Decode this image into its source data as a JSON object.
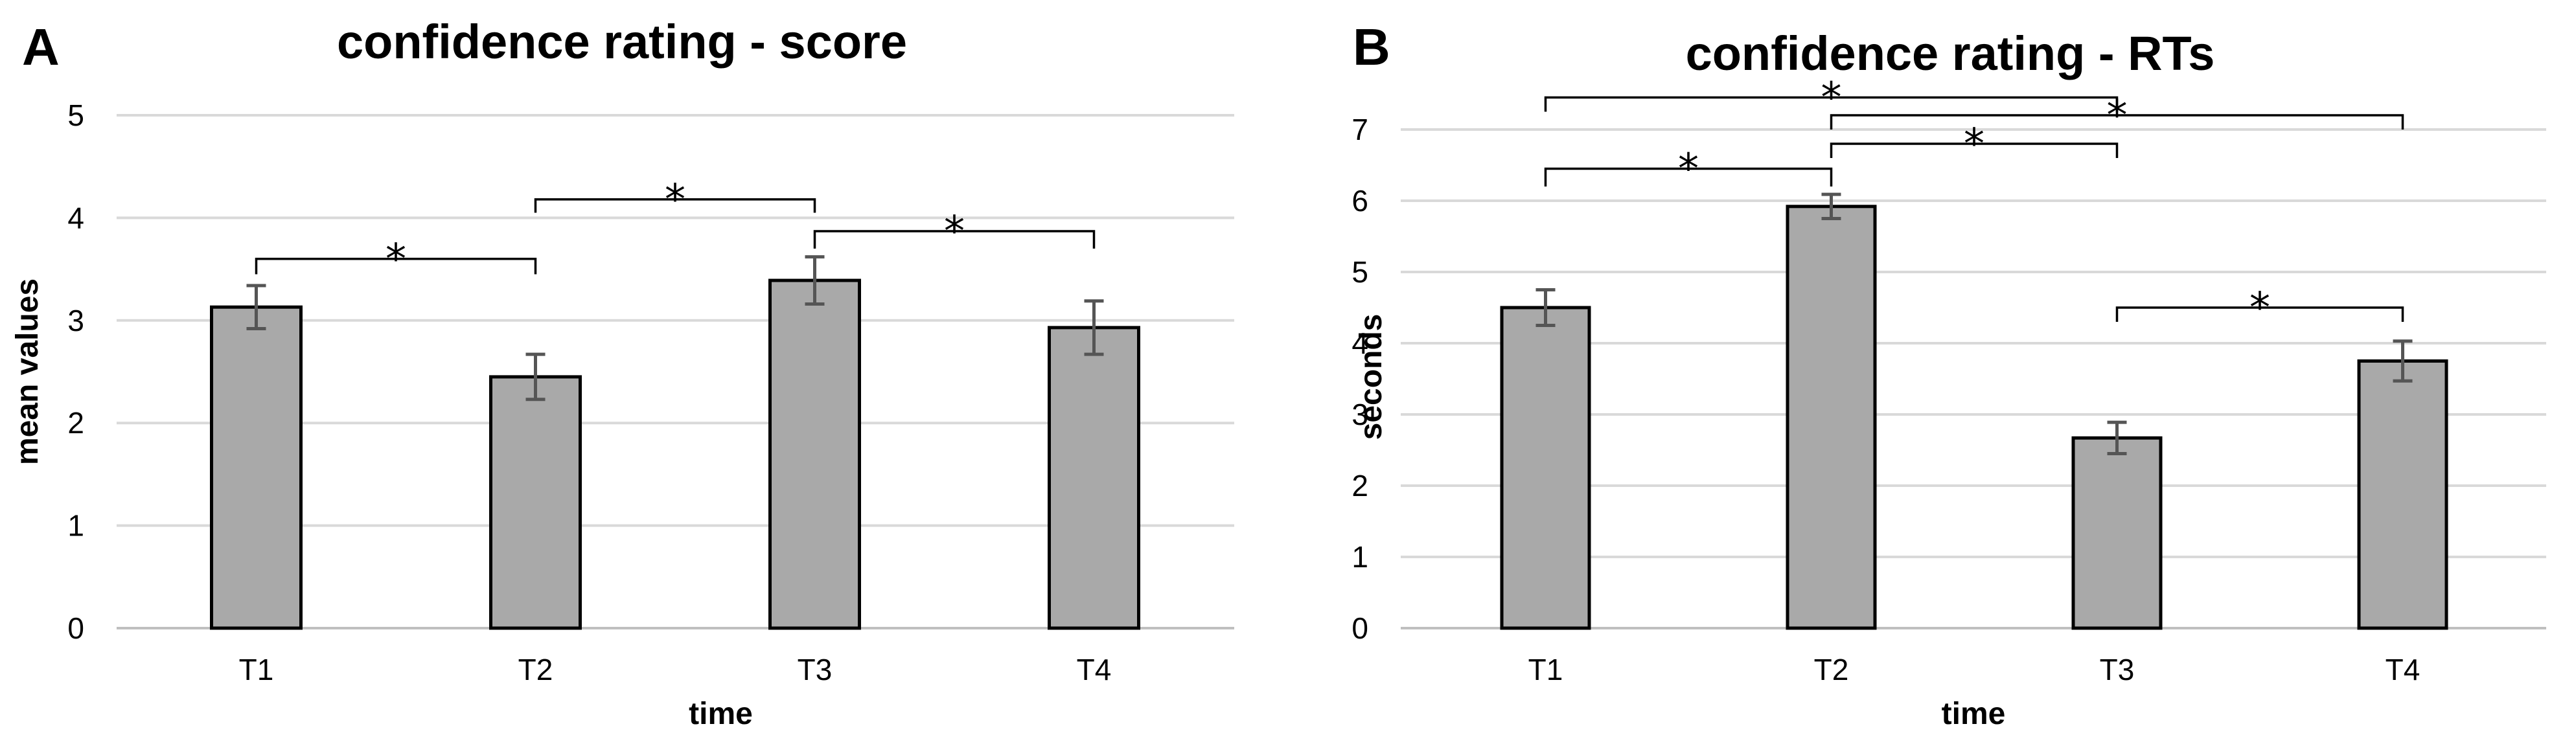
{
  "chart_data": [
    {
      "type": "bar",
      "panel_label": "A",
      "title": "confidence rating - score",
      "xlabel": "time",
      "ylabel": "mean values",
      "categories": [
        "T1",
        "T2",
        "T3",
        "T4"
      ],
      "values": [
        3.13,
        2.45,
        3.39,
        2.93
      ],
      "errors": [
        0.21,
        0.22,
        0.23,
        0.26
      ],
      "ylim": [
        0,
        5
      ],
      "yticks": [
        "0",
        "1",
        "2",
        "3",
        "4",
        "5"
      ],
      "grid": true,
      "bar_color": "#a9a9a9",
      "significance": [
        {
          "from": "T1",
          "to": "T2",
          "label": "*",
          "level": 3.6,
          "leg_to": 3.45
        },
        {
          "from": "T2",
          "to": "T3",
          "label": "*",
          "level": 4.18,
          "leg_to": 4.05
        },
        {
          "from": "T3",
          "to": "T4",
          "label": "*",
          "level": 3.87,
          "leg_to": 3.7
        }
      ]
    },
    {
      "type": "bar",
      "panel_label": "B",
      "title": "confidence rating - RTs",
      "xlabel": "time",
      "ylabel": "seconds",
      "categories": [
        "T1",
        "T2",
        "T3",
        "T4"
      ],
      "values": [
        4.5,
        5.92,
        2.67,
        3.75
      ],
      "errors": [
        0.25,
        0.17,
        0.22,
        0.28
      ],
      "ylim": [
        0,
        7
      ],
      "yticks": [
        "0",
        "1",
        "2",
        "3",
        "4",
        "5",
        "6",
        "7"
      ],
      "grid": true,
      "bar_color": "#a9a9a9",
      "significance": [
        {
          "from": "T1",
          "to": "T3",
          "label": "*",
          "level": 7.45,
          "leg_to": 7.25
        },
        {
          "from": "T2",
          "to": "T4",
          "label": "*",
          "level": 7.2,
          "leg_to": 7.0
        },
        {
          "from": "T2",
          "to": "T3",
          "label": "*",
          "level": 6.8,
          "leg_to": 6.6
        },
        {
          "from": "T1",
          "to": "T2",
          "label": "*",
          "level": 6.45,
          "leg_to": 6.2
        },
        {
          "from": "T3",
          "to": "T4",
          "label": "*",
          "level": 4.5,
          "leg_to": 4.3
        }
      ]
    }
  ]
}
